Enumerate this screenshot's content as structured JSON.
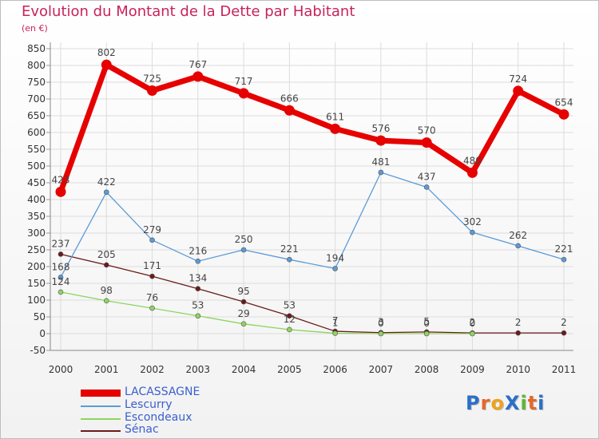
{
  "title": "Evolution du Montant de la Dette par Habitant",
  "unit_label": "(en €)",
  "logo": {
    "text": "ProXiti",
    "colors": [
      "#2a6fc9",
      "#e5672a",
      "#f0a21b",
      "#2a6fc9",
      "#5cb82e",
      "#e5672a",
      "#2a6fc9"
    ]
  },
  "chart_data": {
    "type": "line",
    "x": [
      "2000",
      "2001",
      "2002",
      "2003",
      "2004",
      "2005",
      "2006",
      "2007",
      "2008",
      "2009",
      "2010",
      "2011"
    ],
    "yticks": [
      "-50",
      "0",
      "50",
      "100",
      "150",
      "200",
      "250",
      "300",
      "350",
      "400",
      "450",
      "500",
      "550",
      "600",
      "650",
      "700",
      "750",
      "800",
      "850"
    ],
    "ylim": [
      -50,
      850
    ],
    "grid": true,
    "legend_position": "bottom-left",
    "series": [
      {
        "name": "LACASSAGNE",
        "color": "#e60000",
        "values": [
          423,
          802,
          725,
          767,
          717,
          666,
          611,
          576,
          570,
          480,
          724,
          654
        ],
        "labels": [
          "423",
          "802",
          "725",
          "767",
          "717",
          "666",
          "611",
          "576",
          "570",
          "480",
          "724",
          "654"
        ]
      },
      {
        "name": "Lescurry",
        "color": "#5b9bd5",
        "values": [
          168,
          422,
          279,
          216,
          250,
          221,
          194,
          481,
          437,
          302,
          262,
          221
        ],
        "labels": [
          "168",
          "422",
          "279",
          "216",
          "250",
          "221",
          "194",
          "481",
          "437",
          "302",
          "262",
          "221"
        ]
      },
      {
        "name": "Escondeaux",
        "color": "#8fd460",
        "values": [
          124,
          98,
          76,
          53,
          29,
          12,
          1,
          0,
          0,
          0,
          null,
          null
        ],
        "labels": [
          "124",
          "98",
          "76",
          "53",
          "29",
          "12",
          "1",
          "0",
          "0",
          "0",
          "",
          ""
        ]
      },
      {
        "name": "Sénac",
        "color": "#6b1a1a",
        "values": [
          237,
          205,
          171,
          134,
          95,
          53,
          7,
          3,
          5,
          2,
          2,
          2
        ],
        "labels": [
          "237",
          "205",
          "171",
          "134",
          "95",
          "53",
          "7",
          "3",
          "5",
          "2",
          "2",
          "2"
        ]
      }
    ]
  }
}
